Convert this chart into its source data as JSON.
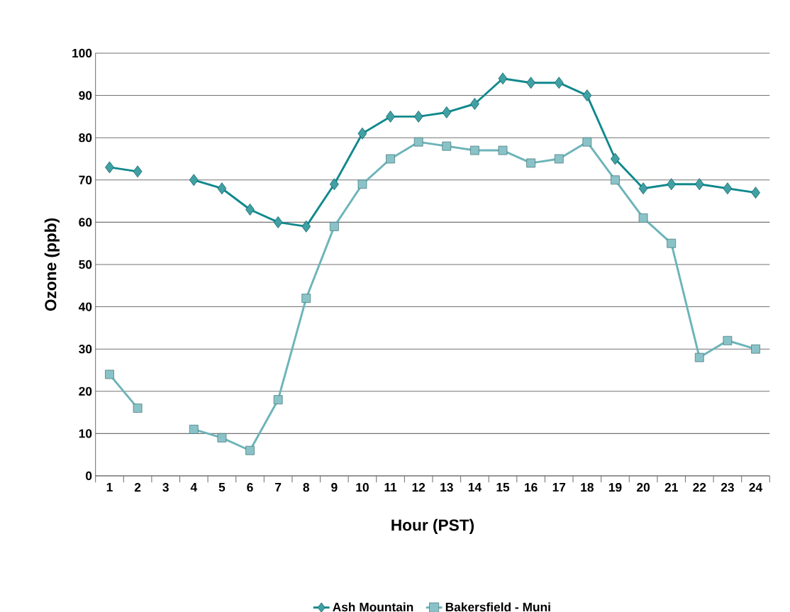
{
  "chart_data": {
    "type": "line",
    "xlabel": "Hour (PST)",
    "ylabel": "Ozone (ppb)",
    "categories": [
      "1",
      "2",
      "3",
      "4",
      "5",
      "6",
      "7",
      "8",
      "9",
      "10",
      "11",
      "12",
      "13",
      "14",
      "15",
      "16",
      "17",
      "18",
      "19",
      "20",
      "21",
      "22",
      "23",
      "24"
    ],
    "series": [
      {
        "name": "Ash Mountain",
        "color": "#10898d",
        "marker": "diamond",
        "values": [
          73,
          72,
          null,
          70,
          68,
          63,
          60,
          59,
          69,
          81,
          85,
          85,
          86,
          88,
          94,
          93,
          93,
          90,
          75,
          68,
          69,
          69,
          68,
          67
        ]
      },
      {
        "name": "Bakersfield - Muni",
        "color": "#6cb4b9",
        "marker": "square",
        "values": [
          24,
          16,
          null,
          11,
          9,
          6,
          18,
          42,
          59,
          69,
          75,
          79,
          78,
          77,
          77,
          74,
          75,
          79,
          70,
          61,
          55,
          28,
          32,
          30
        ]
      }
    ],
    "ylim": [
      0,
      100
    ],
    "yticks": [
      0,
      10,
      20,
      30,
      40,
      50,
      60,
      70,
      80,
      90,
      100
    ],
    "grid": "y",
    "legend": "bottom",
    "line_style": "solid"
  }
}
